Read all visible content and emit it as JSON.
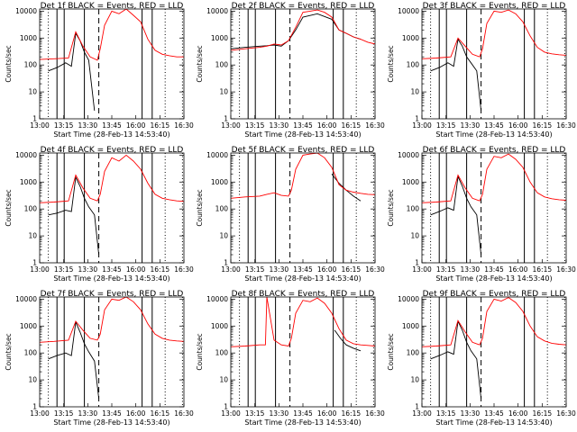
{
  "chart_data": [
    {
      "type": "line",
      "title": "Det 1f BLACK = Events, RED = LLD",
      "xlabel": "Start Time (28-Feb-13 14:53:40)",
      "ylabel": "Counts/sec",
      "x_tick_labels": [
        "13:00",
        "13:15",
        "13:30",
        "13:45",
        "16:00",
        "16:15",
        "16:30"
      ],
      "y_tick_labels": [
        "1",
        "10",
        "100",
        "1000",
        "10000"
      ],
      "ylim": [
        1,
        12000
      ],
      "yscale": "log",
      "colors": {
        "events": "#000000",
        "lld": "#ff0000"
      },
      "series": [
        {
          "name": "Events",
          "x": [
            0.06,
            0.12,
            0.18,
            0.22,
            0.25,
            0.28,
            0.31,
            0.34,
            0.38,
            0.41,
            0.44,
            0.47,
            0.5,
            0.53
          ],
          "y": [
            60,
            80,
            120,
            90,
            1500,
            800,
            300,
            150,
            2,
            null,
            null,
            null,
            null,
            null
          ]
        },
        {
          "name": "LLD",
          "x": [
            0.0,
            0.1,
            0.2,
            0.25,
            0.3,
            0.35,
            0.4,
            0.42,
            0.45,
            0.5,
            0.55,
            0.6,
            0.65,
            0.7,
            0.75,
            0.8,
            0.85,
            0.9,
            0.95,
            1.0
          ],
          "y": [
            160,
            170,
            180,
            1700,
            500,
            200,
            150,
            400,
            3000,
            10000,
            8000,
            12000,
            7000,
            4000,
            900,
            350,
            250,
            220,
            200,
            200
          ]
        }
      ],
      "markers": {
        "solid": [
          0.12,
          0.17,
          0.31,
          0.71,
          0.78
        ],
        "dashed": [
          0.41
        ],
        "dotted": [
          0.06,
          0.87,
          0.99
        ]
      }
    },
    {
      "type": "line",
      "title": "Det 2f BLACK = Events, RED = LLD",
      "xlabel": "Start Time (28-Feb-13 14:53:40)",
      "ylabel": "Counts/sec",
      "x_tick_labels": [
        "13:00",
        "13:15",
        "13:30",
        "13:45",
        "16:00",
        "16:15",
        "16:30"
      ],
      "y_tick_labels": [
        "1",
        "10",
        "100",
        "1000",
        "10000"
      ],
      "ylim": [
        1,
        12000
      ],
      "yscale": "log",
      "colors": {
        "events": "#000000",
        "lld": "#ff0000"
      },
      "series": [
        {
          "name": "Events",
          "x": [
            0.0,
            0.1,
            0.2,
            0.25,
            0.3,
            0.35,
            0.4,
            0.45,
            0.5,
            0.6,
            0.7,
            0.75,
            0.8,
            0.85,
            0.9
          ],
          "y": [
            400,
            450,
            500,
            520,
            550,
            500,
            800,
            2000,
            6000,
            8000,
            5000,
            2000,
            1500,
            1100,
            900
          ]
        },
        {
          "name": "LLD",
          "x": [
            0.0,
            0.1,
            0.2,
            0.25,
            0.3,
            0.35,
            0.4,
            0.45,
            0.5,
            0.55,
            0.6,
            0.65,
            0.7,
            0.75,
            0.8,
            0.85,
            0.9,
            0.95,
            1.0
          ],
          "y": [
            350,
            400,
            450,
            500,
            600,
            550,
            800,
            2500,
            9000,
            10000,
            11000,
            9000,
            6000,
            2000,
            1500,
            1100,
            900,
            700,
            600
          ]
        }
      ],
      "markers": {
        "solid": [
          0.12,
          0.17,
          0.31,
          0.71,
          0.78
        ],
        "dashed": [
          0.41
        ],
        "dotted": [
          0.06,
          0.87,
          0.99
        ]
      }
    },
    {
      "type": "line",
      "title": "Det 3f BLACK = Events, RED = LLD",
      "xlabel": "Start Time (28-Feb-13 14:53:40)",
      "ylabel": "Counts/sec",
      "x_tick_labels": [
        "13:00",
        "13:15",
        "13:30",
        "13:45",
        "16:00",
        "16:15",
        "16:30"
      ],
      "y_tick_labels": [
        "1",
        "10",
        "100",
        "1000",
        "10000"
      ],
      "ylim": [
        1,
        12000
      ],
      "yscale": "log",
      "colors": {
        "events": "#000000",
        "lld": "#ff0000"
      },
      "series": [
        {
          "name": "Events",
          "x": [
            0.06,
            0.12,
            0.18,
            0.22,
            0.25,
            0.28,
            0.31,
            0.34,
            0.38,
            0.41
          ],
          "y": [
            60,
            80,
            120,
            90,
            900,
            500,
            200,
            120,
            60,
            2
          ]
        },
        {
          "name": "LLD",
          "x": [
            0.0,
            0.1,
            0.2,
            0.25,
            0.3,
            0.35,
            0.4,
            0.42,
            0.45,
            0.5,
            0.55,
            0.6,
            0.65,
            0.7,
            0.75,
            0.8,
            0.85,
            0.9,
            0.95,
            1.0
          ],
          "y": [
            170,
            180,
            200,
            1000,
            500,
            250,
            200,
            400,
            3500,
            10000,
            9000,
            11000,
            8000,
            4000,
            1200,
            450,
            300,
            260,
            240,
            230
          ]
        }
      ],
      "markers": {
        "solid": [
          0.12,
          0.17,
          0.31,
          0.71,
          0.78
        ],
        "dashed": [
          0.41
        ],
        "dotted": [
          0.06,
          0.87,
          0.99
        ]
      }
    },
    {
      "type": "line",
      "title": "Det 4f BLACK = Events, RED = LLD",
      "xlabel": "Start Time (28-Feb-13 14:53:40)",
      "ylabel": "Counts/sec",
      "x_tick_labels": [
        "13:00",
        "13:15",
        "13:30",
        "13:45",
        "16:00",
        "16:15",
        "16:30"
      ],
      "y_tick_labels": [
        "1",
        "10",
        "100",
        "1000",
        "10000"
      ],
      "ylim": [
        1,
        12000
      ],
      "yscale": "log",
      "colors": {
        "events": "#000000",
        "lld": "#ff0000"
      },
      "series": [
        {
          "name": "Events",
          "x": [
            0.06,
            0.12,
            0.18,
            0.22,
            0.25,
            0.28,
            0.31,
            0.34,
            0.38,
            0.41
          ],
          "y": [
            60,
            70,
            90,
            80,
            1500,
            700,
            250,
            120,
            60,
            2
          ]
        },
        {
          "name": "LLD",
          "x": [
            0.0,
            0.1,
            0.2,
            0.25,
            0.3,
            0.35,
            0.4,
            0.42,
            0.45,
            0.5,
            0.55,
            0.6,
            0.65,
            0.7,
            0.75,
            0.8,
            0.85,
            0.9,
            0.95,
            1.0
          ],
          "y": [
            170,
            180,
            200,
            1800,
            600,
            250,
            200,
            350,
            2500,
            8000,
            6000,
            10000,
            6000,
            3000,
            900,
            350,
            250,
            220,
            200,
            190
          ]
        }
      ],
      "markers": {
        "solid": [
          0.12,
          0.17,
          0.31,
          0.71,
          0.78
        ],
        "dashed": [
          0.41
        ],
        "dotted": [
          0.06,
          0.87,
          0.99
        ]
      }
    },
    {
      "type": "line",
      "title": "Det 5f BLACK = Events, RED = LLD",
      "xlabel": "Start Time (28-Feb-13 14:53:40)",
      "ylabel": "Counts/sec",
      "x_tick_labels": [
        "13:00",
        "13:15",
        "13:30",
        "13:45",
        "16:00",
        "16:15",
        "16:30"
      ],
      "y_tick_labels": [
        "1",
        "10",
        "100",
        "1000",
        "10000"
      ],
      "ylim": [
        1,
        12000
      ],
      "yscale": "log",
      "colors": {
        "events": "#000000",
        "lld": "#ff0000"
      },
      "series": [
        {
          "name": "Events",
          "x": [
            0.7,
            0.75,
            0.8,
            0.85,
            0.9
          ],
          "y": [
            2000,
            900,
            500,
            300,
            200
          ]
        },
        {
          "name": "LLD",
          "x": [
            0.0,
            0.1,
            0.2,
            0.25,
            0.3,
            0.35,
            0.4,
            0.42,
            0.45,
            0.5,
            0.55,
            0.6,
            0.65,
            0.7,
            0.75,
            0.8,
            0.85,
            0.9,
            0.95,
            1.0
          ],
          "y": [
            250,
            280,
            300,
            350,
            400,
            320,
            300,
            500,
            3000,
            10000,
            11000,
            12000,
            8000,
            3500,
            800,
            500,
            420,
            380,
            350,
            340
          ]
        }
      ],
      "markers": {
        "solid": [
          0.12,
          0.17,
          0.31,
          0.71,
          0.78
        ],
        "dashed": [
          0.41
        ],
        "dotted": [
          0.06,
          0.87,
          0.99
        ]
      }
    },
    {
      "type": "line",
      "title": "Det 6f BLACK = Events, RED = LLD",
      "xlabel": "Start Time (28-Feb-13 14:53:40)",
      "ylabel": "Counts/sec",
      "x_tick_labels": [
        "13:00",
        "13:15",
        "13:30",
        "13:45",
        "16:00",
        "16:15",
        "16:30"
      ],
      "y_tick_labels": [
        "1",
        "10",
        "100",
        "1000",
        "10000"
      ],
      "ylim": [
        1,
        12000
      ],
      "yscale": "log",
      "colors": {
        "events": "#000000",
        "lld": "#ff0000"
      },
      "series": [
        {
          "name": "Events",
          "x": [
            0.06,
            0.12,
            0.18,
            0.22,
            0.25,
            0.28,
            0.31,
            0.34,
            0.38,
            0.41
          ],
          "y": [
            60,
            80,
            110,
            90,
            1600,
            700,
            250,
            120,
            60,
            2
          ]
        },
        {
          "name": "LLD",
          "x": [
            0.0,
            0.1,
            0.2,
            0.25,
            0.3,
            0.35,
            0.4,
            0.42,
            0.45,
            0.5,
            0.55,
            0.6,
            0.65,
            0.7,
            0.75,
            0.8,
            0.85,
            0.9,
            0.95,
            1.0
          ],
          "y": [
            170,
            180,
            200,
            1800,
            600,
            250,
            200,
            350,
            3000,
            9000,
            8000,
            11000,
            7000,
            3500,
            1000,
            400,
            280,
            240,
            220,
            210
          ]
        }
      ],
      "markers": {
        "solid": [
          0.12,
          0.17,
          0.31,
          0.71,
          0.78
        ],
        "dashed": [
          0.41
        ],
        "dotted": [
          0.06,
          0.87,
          0.99
        ]
      }
    },
    {
      "type": "line",
      "title": "Det 7f BLACK = Events, RED = LLD",
      "xlabel": "Start Time (28-Feb-13 14:53:40)",
      "ylabel": "Counts/sec",
      "x_tick_labels": [
        "13:00",
        "13:15",
        "13:30",
        "13:45",
        "16:00",
        "16:15",
        "16:30"
      ],
      "y_tick_labels": [
        "1",
        "10",
        "100",
        "1000",
        "10000"
      ],
      "ylim": [
        1,
        12000
      ],
      "yscale": "log",
      "colors": {
        "events": "#000000",
        "lld": "#ff0000"
      },
      "series": [
        {
          "name": "Events",
          "x": [
            0.06,
            0.12,
            0.18,
            0.22,
            0.25,
            0.28,
            0.31,
            0.34,
            0.38,
            0.41
          ],
          "y": [
            60,
            80,
            100,
            80,
            1400,
            600,
            220,
            110,
            50,
            2
          ]
        },
        {
          "name": "LLD",
          "x": [
            0.0,
            0.1,
            0.2,
            0.25,
            0.3,
            0.35,
            0.4,
            0.42,
            0.45,
            0.5,
            0.55,
            0.6,
            0.65,
            0.7,
            0.75,
            0.8,
            0.85,
            0.9,
            0.95,
            1.0
          ],
          "y": [
            250,
            270,
            300,
            1500,
            700,
            350,
            300,
            500,
            4000,
            10000,
            9000,
            12000,
            8000,
            4000,
            1200,
            500,
            350,
            300,
            280,
            270
          ]
        }
      ],
      "markers": {
        "solid": [
          0.12,
          0.17,
          0.31,
          0.71,
          0.78
        ],
        "dashed": [
          0.41
        ],
        "dotted": [
          0.06,
          0.87,
          0.99
        ]
      }
    },
    {
      "type": "line",
      "title": "Det 8f BLACK = Events, RED = LLD",
      "xlabel": "Start Time (28-Feb-13 14:53:40)",
      "ylabel": "Counts/sec",
      "x_tick_labels": [
        "13:00",
        "13:15",
        "13:30",
        "13:45",
        "16:00",
        "16:15",
        "16:30"
      ],
      "y_tick_labels": [
        "1",
        "10",
        "100",
        "1000",
        "10000"
      ],
      "ylim": [
        1,
        12000
      ],
      "yscale": "log",
      "colors": {
        "events": "#000000",
        "lld": "#ff0000"
      },
      "series": [
        {
          "name": "Events",
          "x": [
            0.72,
            0.76,
            0.8,
            0.85,
            0.9
          ],
          "y": [
            700,
            350,
            200,
            150,
            120
          ]
        },
        {
          "name": "LLD",
          "x": [
            0.0,
            0.1,
            0.2,
            0.24,
            0.25,
            0.3,
            0.35,
            0.4,
            0.42,
            0.45,
            0.5,
            0.55,
            0.6,
            0.65,
            0.7,
            0.75,
            0.8,
            0.85,
            0.9,
            0.95,
            1.0
          ],
          "y": [
            170,
            180,
            200,
            200,
            12000,
            300,
            200,
            180,
            350,
            3000,
            9000,
            8000,
            11000,
            7000,
            3000,
            800,
            300,
            220,
            200,
            190,
            180
          ]
        }
      ],
      "markers": {
        "solid": [
          0.12,
          0.17,
          0.31,
          0.71,
          0.78
        ],
        "dashed": [
          0.41
        ],
        "dotted": [
          0.06,
          0.87,
          0.99
        ]
      }
    },
    {
      "type": "line",
      "title": "Det 9f BLACK = Events, RED = LLD",
      "xlabel": "Start Time (28-Feb-13 14:53:40)",
      "ylabel": "Counts/sec",
      "x_tick_labels": [
        "13:00",
        "13:15",
        "13:30",
        "13:45",
        "16:00",
        "16:15",
        "16:30"
      ],
      "y_tick_labels": [
        "1",
        "10",
        "100",
        "1000",
        "10000"
      ],
      "ylim": [
        1,
        12000
      ],
      "yscale": "log",
      "colors": {
        "events": "#000000",
        "lld": "#ff0000"
      },
      "series": [
        {
          "name": "Events",
          "x": [
            0.06,
            0.12,
            0.18,
            0.22,
            0.25,
            0.28,
            0.31,
            0.34,
            0.38,
            0.41
          ],
          "y": [
            60,
            80,
            110,
            90,
            1500,
            700,
            250,
            120,
            60,
            2
          ]
        },
        {
          "name": "LLD",
          "x": [
            0.0,
            0.1,
            0.2,
            0.25,
            0.3,
            0.35,
            0.4,
            0.42,
            0.45,
            0.5,
            0.55,
            0.6,
            0.65,
            0.7,
            0.75,
            0.8,
            0.85,
            0.9,
            0.95,
            1.0
          ],
          "y": [
            170,
            180,
            200,
            1600,
            600,
            250,
            200,
            350,
            3500,
            10000,
            8500,
            11500,
            7500,
            3500,
            1000,
            400,
            280,
            230,
            210,
            200
          ]
        }
      ],
      "markers": {
        "solid": [
          0.12,
          0.17,
          0.31,
          0.71,
          0.78
        ],
        "dashed": [
          0.41
        ],
        "dotted": [
          0.06,
          0.87,
          0.99
        ]
      }
    }
  ]
}
